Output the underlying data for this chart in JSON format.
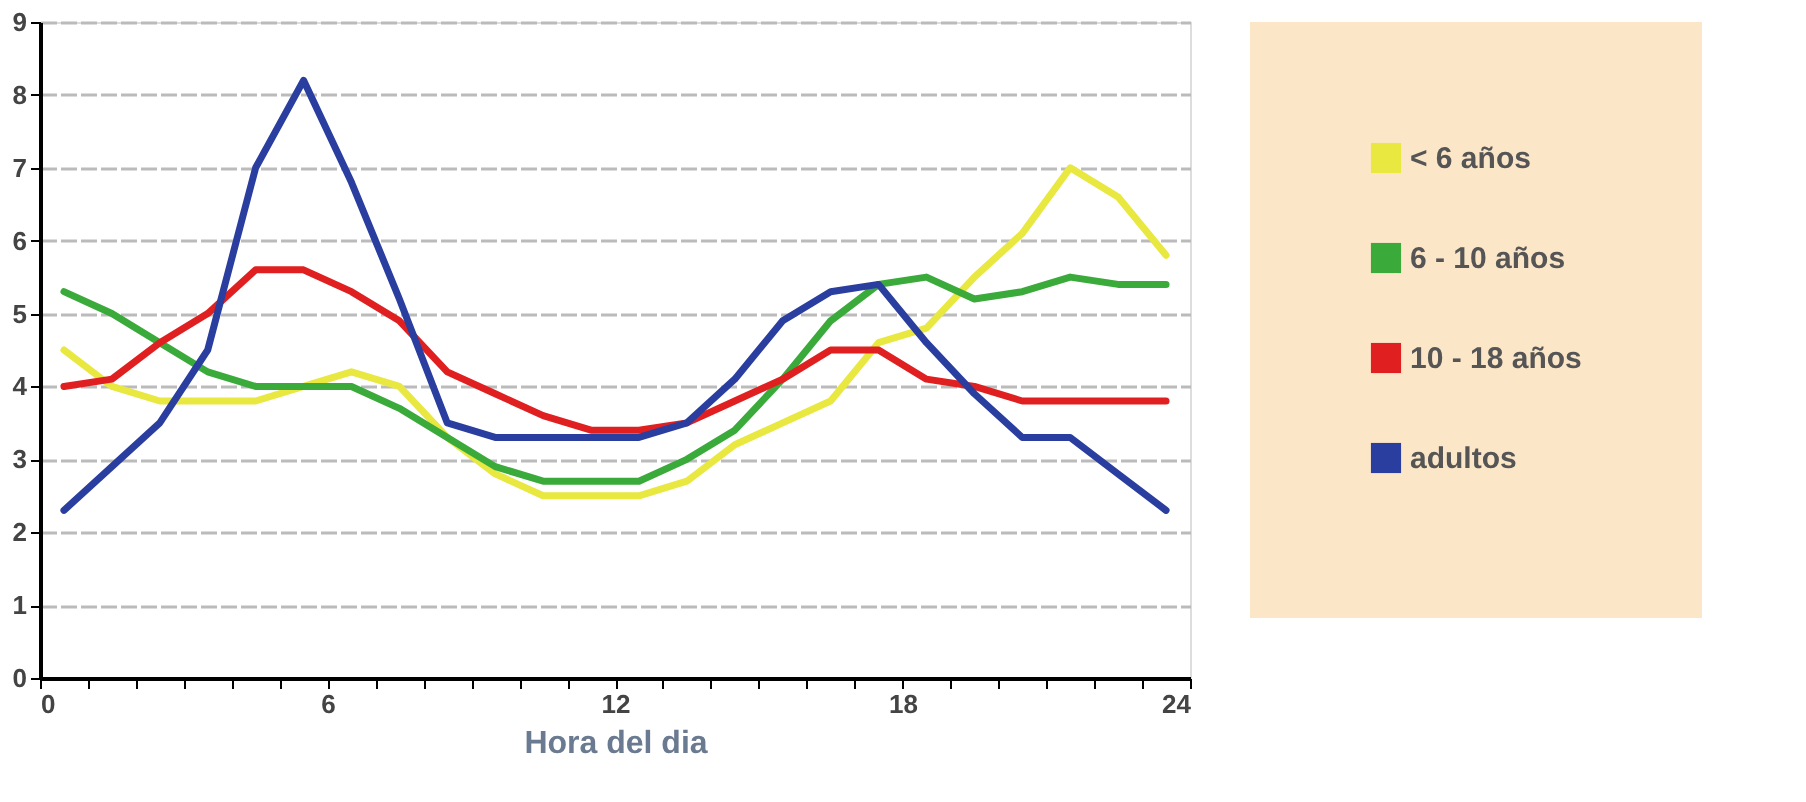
{
  "chart_data": {
    "type": "line",
    "xlabel": "Hora del dia",
    "x": [
      0.5,
      1.5,
      2.5,
      3.5,
      4.5,
      5.5,
      6.5,
      7.5,
      8.5,
      9.5,
      10.5,
      11.5,
      12.5,
      13.5,
      14.5,
      15.5,
      16.5,
      17.5,
      18.5,
      19.5,
      20.5,
      21.5,
      22.5,
      23.5
    ],
    "series": [
      {
        "name": "< 6 años",
        "color": "#e8e840",
        "values": [
          4.5,
          4.0,
          3.8,
          3.8,
          3.8,
          4.0,
          4.2,
          4.0,
          3.3,
          2.8,
          2.5,
          2.5,
          2.5,
          2.7,
          3.2,
          3.5,
          3.8,
          4.6,
          4.8,
          5.5,
          6.1,
          7.0,
          6.6,
          5.8
        ]
      },
      {
        "name": "6 - 10 años",
        "color": "#3aaa3a",
        "values": [
          5.3,
          5.0,
          4.6,
          4.2,
          4.0,
          4.0,
          4.0,
          3.7,
          3.3,
          2.9,
          2.7,
          2.7,
          2.7,
          3.0,
          3.4,
          4.1,
          4.9,
          5.4,
          5.5,
          5.2,
          5.3,
          5.5,
          5.4,
          5.4
        ]
      },
      {
        "name": "10 - 18 años",
        "color": "#e02020",
        "values": [
          4.0,
          4.1,
          4.6,
          5.0,
          5.6,
          5.6,
          5.3,
          4.9,
          4.2,
          3.9,
          3.6,
          3.4,
          3.4,
          3.5,
          3.8,
          4.1,
          4.5,
          4.5,
          4.1,
          4.0,
          3.8,
          3.8,
          3.8,
          3.8
        ]
      },
      {
        "name": "adultos",
        "color": "#2a3ea0",
        "values": [
          2.3,
          2.9,
          3.5,
          4.5,
          7.0,
          8.2,
          6.8,
          5.2,
          3.5,
          3.3,
          3.3,
          3.3,
          3.3,
          3.5,
          4.1,
          4.9,
          5.3,
          5.4,
          4.6,
          3.9,
          3.3,
          3.3,
          2.8,
          2.3
        ]
      }
    ],
    "xlim": [
      0,
      24
    ],
    "xticks": [
      0,
      {
        "value": 1,
        "label": null
      },
      {
        "value": 2,
        "label": null
      },
      {
        "value": 3,
        "label": null
      },
      {
        "value": 4,
        "label": null
      },
      {
        "value": 5,
        "label": null
      },
      6,
      {
        "value": 7,
        "label": null
      },
      {
        "value": 8,
        "label": null
      },
      {
        "value": 9,
        "label": null
      },
      {
        "value": 10,
        "label": null
      },
      {
        "value": 11,
        "label": null
      },
      12,
      {
        "value": 13,
        "label": null
      },
      {
        "value": 14,
        "label": null
      },
      {
        "value": 15,
        "label": null
      },
      {
        "value": 16,
        "label": null
      },
      {
        "value": 17,
        "label": null
      },
      18,
      {
        "value": 19,
        "label": null
      },
      {
        "value": 20,
        "label": null
      },
      {
        "value": 21,
        "label": null
      },
      {
        "value": 22,
        "label": null
      },
      {
        "value": 23,
        "label": null
      },
      24
    ],
    "ylim": [
      0,
      9
    ],
    "yticks": [
      0,
      1,
      2,
      3,
      4,
      5,
      6,
      7,
      8,
      9
    ],
    "grid": "y",
    "legend": "right",
    "marker": "none",
    "line_style": "solid"
  }
}
